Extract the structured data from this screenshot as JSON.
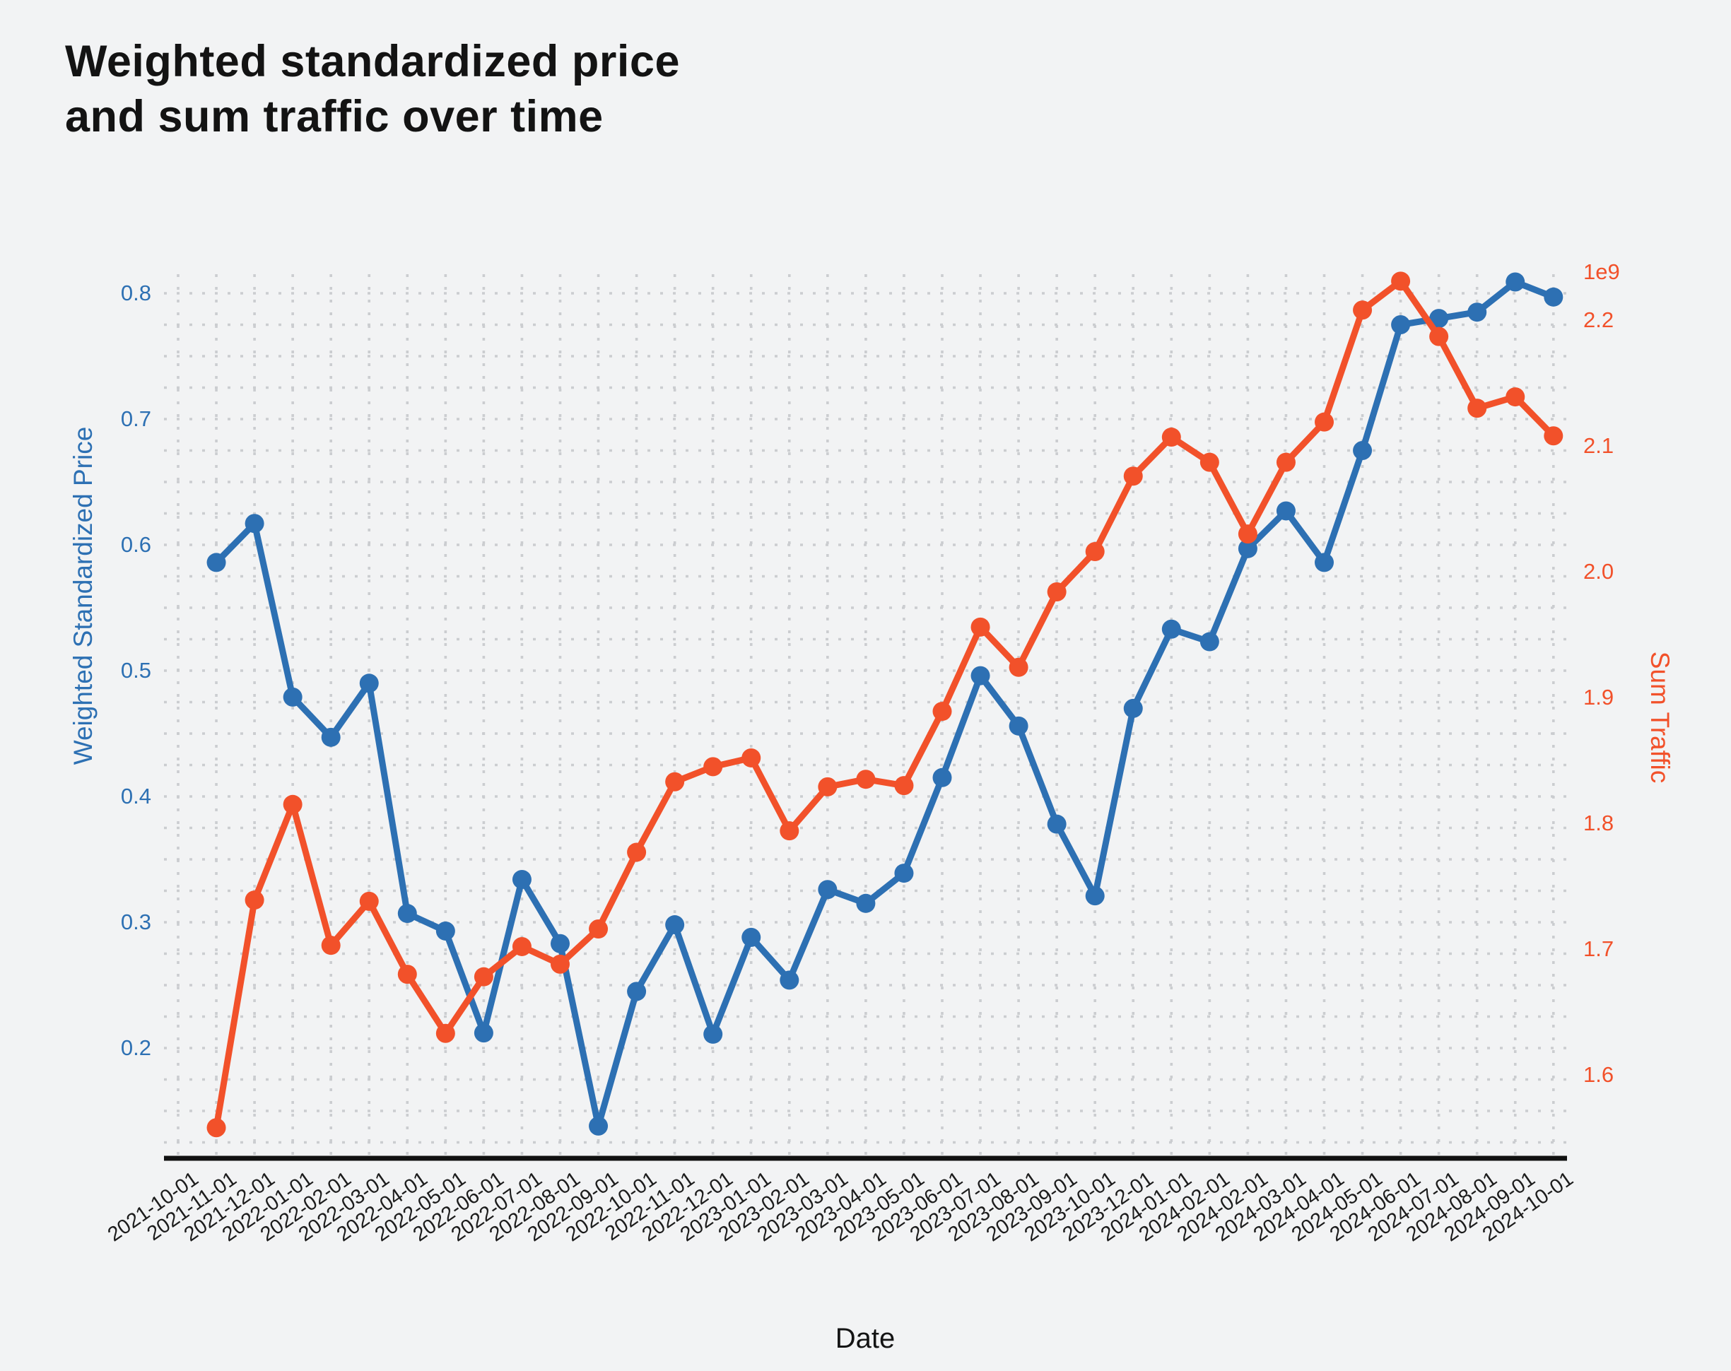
{
  "title": {
    "line1": "Weighted standardized price",
    "line2": "and sum traffic over time"
  },
  "x_axis": {
    "title": "Date"
  },
  "y_axis_left": {
    "title": "Weighted Standardized Price",
    "color": "#2d70b3"
  },
  "y_axis_right": {
    "title": "Sum Traffic",
    "multiplier": "1e9",
    "color": "#f2512a"
  },
  "colors": {
    "background": "#f2f3f4",
    "grid": "#cbcdd0",
    "axis_line": "#111111",
    "x_tick_text": "#1c1c1c"
  },
  "chart_data": {
    "type": "line",
    "title": "Weighted standardized price and sum traffic over time",
    "xlabel": "Date",
    "ylabel_left": "Weighted Standardized Price",
    "ylabel_right": "Sum Traffic",
    "legend_position": "none",
    "grid": "dotted",
    "categories": [
      "2021-10-01",
      "2021-11-01",
      "2021-12-01",
      "2022-01-01",
      "2022-02-01",
      "2022-03-01",
      "2022-04-01",
      "2022-05-01",
      "2022-06-01",
      "2022-07-01",
      "2022-08-01",
      "2022-09-01",
      "2022-10-01",
      "2022-11-01",
      "2022-12-01",
      "2023-01-01",
      "2023-02-01",
      "2023-03-01",
      "2023-04-01",
      "2023-05-01",
      "2023-06-01",
      "2023-07-01",
      "2023-08-01",
      "2023-09-01",
      "2023-10-01",
      "2023-12-01",
      "2024-01-01",
      "2024-02-01",
      "2024-02-01",
      "2024-03-01",
      "2024-04-01",
      "2024-05-01",
      "2024-06-01",
      "2024-07-01",
      "2024-08-01",
      "2024-09-01",
      "2024-10-01"
    ],
    "series": [
      {
        "name": "Weighted Standardized Price",
        "axis": "left",
        "color": "#2d70b3",
        "marker": "circle",
        "values": [
          null,
          0.586,
          0.617,
          0.479,
          0.447,
          0.49,
          0.307,
          0.293,
          0.212,
          0.334,
          0.283,
          0.138,
          0.245,
          0.298,
          0.211,
          0.288,
          0.254,
          0.326,
          0.315,
          0.339,
          0.415,
          0.496,
          0.456,
          0.378,
          0.321,
          0.47,
          0.533,
          0.523,
          0.597,
          0.627,
          0.586,
          0.675,
          0.775,
          0.78,
          0.785,
          0.809,
          0.797
        ]
      },
      {
        "name": "Sum Traffic",
        "axis": "right",
        "color": "#f2512a",
        "marker": "circle",
        "unit": "1e9",
        "values": [
          null,
          1.558,
          1.739,
          1.815,
          1.703,
          1.738,
          1.68,
          1.633,
          1.678,
          1.702,
          1.688,
          1.716,
          1.777,
          1.833,
          1.845,
          1.852,
          1.794,
          1.829,
          1.835,
          1.83,
          1.889,
          1.956,
          1.924,
          1.984,
          2.016,
          2.076,
          2.107,
          2.087,
          2.03,
          2.087,
          2.119,
          2.208,
          2.231,
          2.187,
          2.13,
          2.139,
          2.108
        ]
      }
    ],
    "y_left_ticks": [
      0.2,
      0.3,
      0.4,
      0.5,
      0.6,
      0.7,
      0.8
    ],
    "y_right_ticks": [
      1.6,
      1.7,
      1.8,
      1.9,
      2.0,
      2.1,
      2.2
    ],
    "y_left_range": [
      0.113,
      0.814
    ],
    "y_right_range": [
      1.535,
      2.235
    ]
  }
}
